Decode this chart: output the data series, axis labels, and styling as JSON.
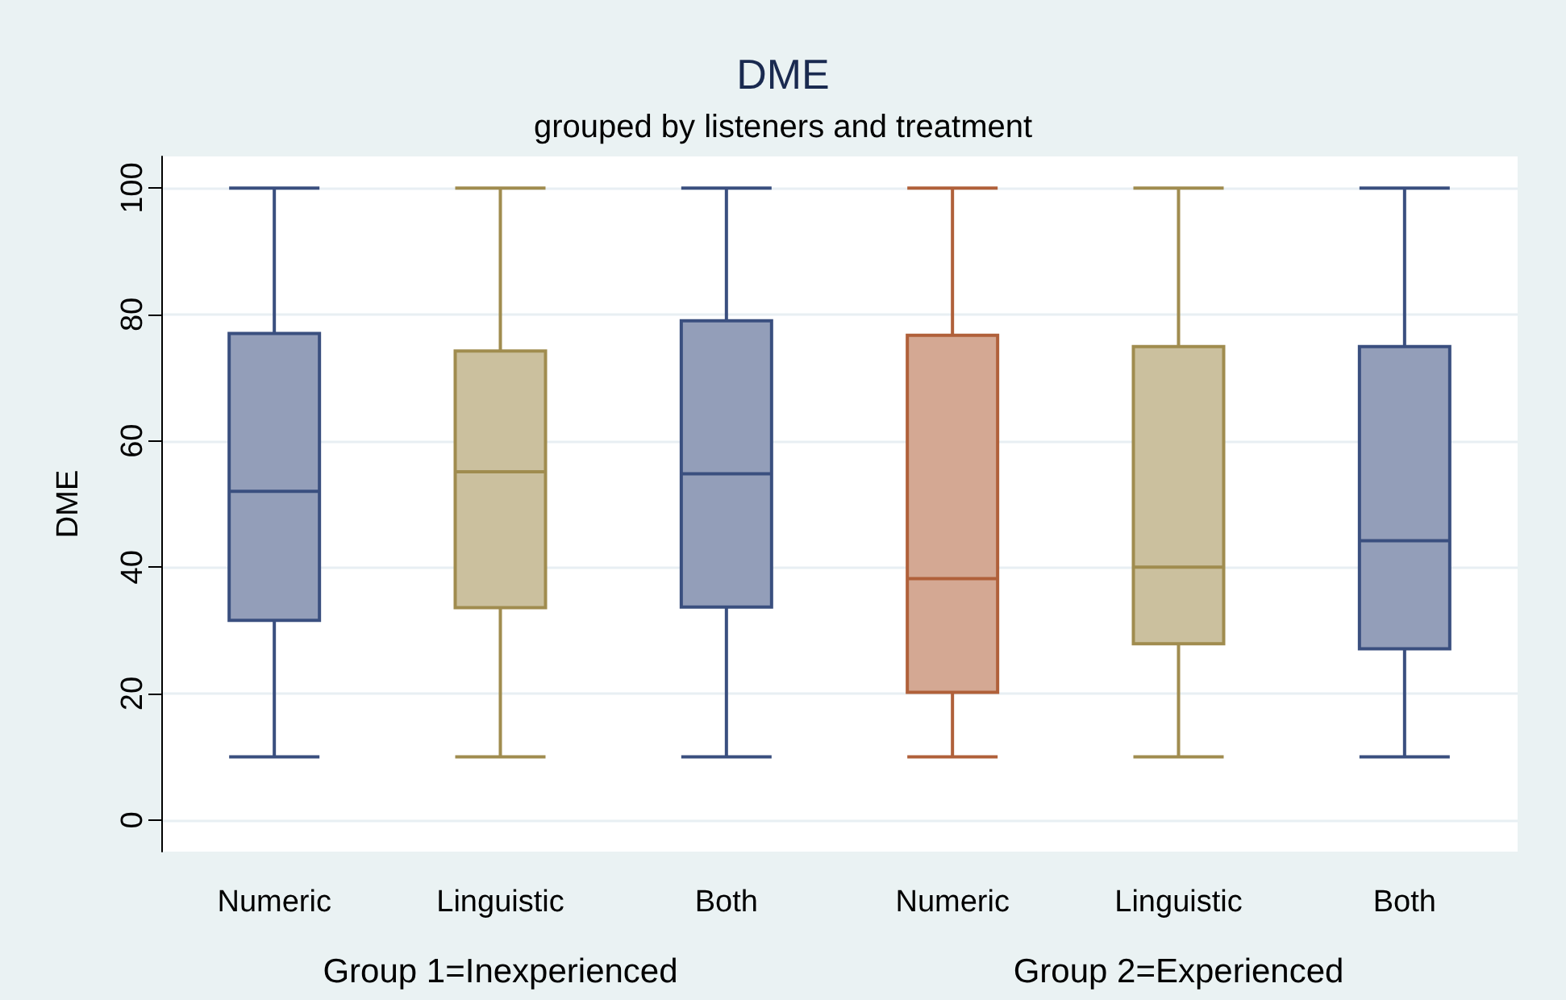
{
  "chart_data": {
    "type": "box",
    "title": "DME",
    "subtitle": "grouped by listeners and treatment",
    "ylabel": "DME",
    "categories": [
      "Numeric",
      "Linguistic",
      "Both",
      "Numeric",
      "Linguistic",
      "Both"
    ],
    "colors": [
      "#3a4f7f",
      "#a08c4f",
      "#3a4f7f",
      "#b0603a",
      "#a08c4f",
      "#3a4f7f"
    ],
    "boxes": [
      {
        "low": 10,
        "q1": 31.6,
        "median": 52,
        "q3": 77,
        "high": 100
      },
      {
        "low": 10,
        "q1": 33.6,
        "median": 55.1,
        "q3": 74.2,
        "high": 100
      },
      {
        "low": 10,
        "q1": 33.7,
        "median": 54.8,
        "q3": 79,
        "high": 100
      },
      {
        "low": 10,
        "q1": 20.2,
        "median": 38.2,
        "q3": 76.7,
        "high": 100
      },
      {
        "low": 10,
        "q1": 27.9,
        "median": 40,
        "q3": 74.9,
        "high": 100
      },
      {
        "low": 10,
        "q1": 27.1,
        "median": 44.2,
        "q3": 74.9,
        "high": 100
      }
    ],
    "annotations": [
      "Group 1=Inexperienced",
      "Group 2=Experienced"
    ],
    "ylim": [
      -5,
      105
    ],
    "yticks": [
      0,
      20,
      40,
      60,
      80,
      100
    ],
    "grid": "y"
  }
}
